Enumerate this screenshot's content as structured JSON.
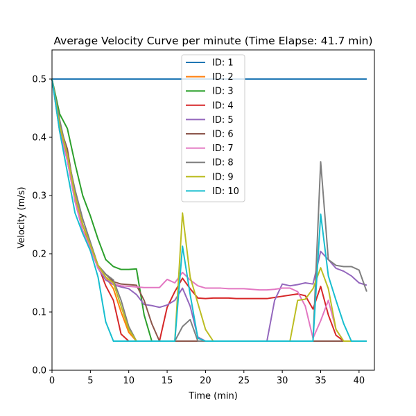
{
  "chart_data": {
    "type": "line",
    "title": "Average Velocity Curve per minute (Time Elapse: 41.7 min)",
    "xlabel": "Time (min)",
    "ylabel": "Velocity (m/s)",
    "xlim": [
      0,
      42
    ],
    "ylim": [
      0,
      0.55
    ],
    "xticks": [
      0,
      5,
      10,
      15,
      20,
      25,
      30,
      35,
      40
    ],
    "yticks": [
      0.0,
      0.1,
      0.2,
      0.3,
      0.4,
      0.5
    ],
    "grid": false,
    "legend_position": "top-center",
    "series": [
      {
        "name": "ID: 1",
        "color": "#1f77b4",
        "x": [
          0,
          41
        ],
        "y": [
          0.5,
          0.5
        ]
      },
      {
        "name": "ID: 2",
        "color": "#ff7f0e",
        "x": [
          0,
          1,
          2,
          3,
          4,
          5,
          6,
          7,
          8,
          9,
          10,
          11,
          41
        ],
        "y": [
          0.5,
          0.42,
          0.37,
          0.3,
          0.25,
          0.21,
          0.18,
          0.16,
          0.14,
          0.1,
          0.065,
          0.05,
          0.05
        ]
      },
      {
        "name": "ID: 3",
        "color": "#2ca02c",
        "x": [
          0,
          1,
          2,
          3,
          4,
          5,
          6,
          7,
          8,
          9,
          10,
          11,
          12,
          13,
          41
        ],
        "y": [
          0.5,
          0.44,
          0.415,
          0.355,
          0.3,
          0.265,
          0.225,
          0.19,
          0.178,
          0.173,
          0.173,
          0.174,
          0.095,
          0.05,
          0.05
        ]
      },
      {
        "name": "ID: 4",
        "color": "#d62728",
        "x": [
          0,
          1,
          2,
          3,
          4,
          5,
          6,
          7,
          8,
          9,
          10,
          11,
          12,
          13,
          14,
          15,
          16,
          17,
          18,
          19,
          20,
          21,
          22,
          23,
          24,
          25,
          26,
          27,
          28,
          29,
          30,
          31,
          32,
          33,
          34,
          35,
          36,
          37,
          38,
          39,
          40,
          41
        ],
        "y": [
          0.5,
          0.42,
          0.36,
          0.3,
          0.25,
          0.215,
          0.18,
          0.145,
          0.12,
          0.062,
          0.05,
          0.05,
          0.05,
          0.05,
          0.05,
          0.108,
          0.135,
          0.158,
          0.14,
          0.124,
          0.123,
          0.124,
          0.124,
          0.124,
          0.123,
          0.123,
          0.123,
          0.123,
          0.123,
          0.125,
          0.127,
          0.129,
          0.131,
          0.128,
          0.105,
          0.144,
          0.095,
          0.06,
          0.05,
          0.05,
          0.05,
          0.05
        ]
      },
      {
        "name": "ID: 5",
        "color": "#9467bd",
        "x": [
          0,
          1,
          2,
          3,
          4,
          5,
          6,
          7,
          8,
          9,
          10,
          11,
          12,
          13,
          14,
          15,
          16,
          17,
          18,
          19,
          20,
          28,
          29,
          30,
          31,
          32,
          33,
          34,
          35,
          36,
          37,
          38,
          39,
          40,
          41
        ],
        "y": [
          0.5,
          0.41,
          0.36,
          0.29,
          0.24,
          0.21,
          0.175,
          0.155,
          0.147,
          0.143,
          0.14,
          0.13,
          0.113,
          0.111,
          0.108,
          0.112,
          0.12,
          0.141,
          0.11,
          0.057,
          0.05,
          0.05,
          0.12,
          0.148,
          0.145,
          0.147,
          0.15,
          0.148,
          0.204,
          0.19,
          0.175,
          0.17,
          0.162,
          0.15,
          0.146
        ]
      },
      {
        "name": "ID: 6",
        "color": "#8c564b",
        "x": [
          0,
          1,
          2,
          3,
          4,
          5,
          6,
          7,
          8,
          9,
          10,
          11,
          12,
          13,
          14,
          41
        ],
        "y": [
          0.5,
          0.42,
          0.38,
          0.3,
          0.25,
          0.215,
          0.18,
          0.165,
          0.152,
          0.148,
          0.147,
          0.146,
          0.12,
          0.08,
          0.05,
          0.05
        ]
      },
      {
        "name": "ID: 7",
        "color": "#e377c2",
        "x": [
          0,
          1,
          2,
          3,
          4,
          5,
          6,
          7,
          8,
          9,
          10,
          11,
          12,
          13,
          14,
          15,
          16,
          17,
          18,
          19,
          20,
          21,
          22,
          23,
          24,
          25,
          26,
          27,
          28,
          29,
          30,
          31,
          32,
          33,
          34,
          35,
          36,
          37,
          38,
          39,
          40,
          41
        ],
        "y": [
          0.5,
          0.41,
          0.36,
          0.29,
          0.24,
          0.21,
          0.175,
          0.16,
          0.148,
          0.145,
          0.144,
          0.143,
          0.142,
          0.142,
          0.142,
          0.156,
          0.15,
          0.168,
          0.155,
          0.145,
          0.141,
          0.141,
          0.141,
          0.14,
          0.14,
          0.14,
          0.139,
          0.138,
          0.138,
          0.139,
          0.141,
          0.141,
          0.135,
          0.11,
          0.055,
          0.085,
          0.12,
          0.07,
          0.05,
          0.05,
          0.05,
          0.05
        ]
      },
      {
        "name": "ID: 8",
        "color": "#7f7f7f",
        "x": [
          0,
          1,
          2,
          3,
          4,
          5,
          6,
          7,
          8,
          9,
          10,
          11,
          16,
          17,
          18,
          19,
          34,
          35,
          36,
          37,
          38,
          39,
          40,
          41
        ],
        "y": [
          0.5,
          0.43,
          0.37,
          0.31,
          0.26,
          0.22,
          0.18,
          0.165,
          0.155,
          0.12,
          0.075,
          0.05,
          0.05,
          0.075,
          0.087,
          0.05,
          0.05,
          0.358,
          0.19,
          0.18,
          0.178,
          0.178,
          0.172,
          0.135
        ]
      },
      {
        "name": "ID: 9",
        "color": "#bcbd22",
        "x": [
          0,
          1,
          2,
          3,
          4,
          5,
          6,
          7,
          8,
          9,
          10,
          11,
          16,
          17,
          18,
          19,
          20,
          21,
          31,
          32,
          33,
          34,
          35,
          36,
          37,
          38,
          39,
          40,
          41
        ],
        "y": [
          0.5,
          0.42,
          0.37,
          0.3,
          0.25,
          0.215,
          0.18,
          0.16,
          0.15,
          0.11,
          0.07,
          0.05,
          0.05,
          0.27,
          0.16,
          0.115,
          0.07,
          0.05,
          0.05,
          0.12,
          0.122,
          0.14,
          0.176,
          0.14,
          0.07,
          0.05,
          0.05,
          0.05,
          0.05
        ]
      },
      {
        "name": "ID: 10",
        "color": "#17becf",
        "x": [
          0,
          1,
          2,
          3,
          4,
          5,
          6,
          7,
          8,
          16,
          17,
          18,
          19,
          20,
          34,
          35,
          36,
          37,
          38,
          39,
          40,
          41
        ],
        "y": [
          0.5,
          0.41,
          0.34,
          0.27,
          0.235,
          0.205,
          0.16,
          0.083,
          0.05,
          0.05,
          0.213,
          0.13,
          0.055,
          0.05,
          0.05,
          0.268,
          0.162,
          0.12,
          0.08,
          0.05,
          0.05,
          0.05
        ]
      }
    ]
  }
}
